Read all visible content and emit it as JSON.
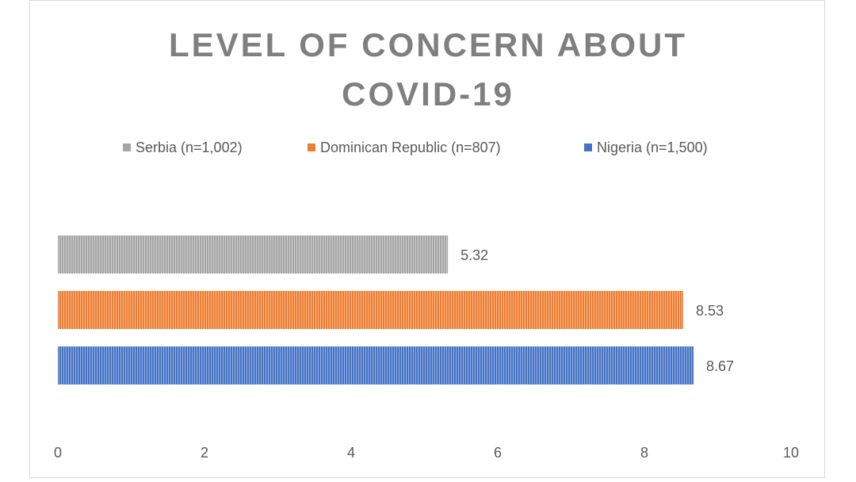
{
  "chart_data": {
    "type": "bar",
    "orientation": "horizontal",
    "title": "LEVEL OF CONCERN ABOUT COVID-19",
    "series": [
      {
        "name": "Serbia (n=1,002)",
        "color": "#a5a5a5",
        "values": [
          5.32
        ]
      },
      {
        "name": "Dominican Republic (n=807)",
        "color": "#ed7d31",
        "values": [
          8.53
        ]
      },
      {
        "name": "Nigeria (n=1,500)",
        "color": "#4472c4",
        "values": [
          8.67
        ]
      }
    ],
    "xlim": [
      0,
      10
    ],
    "xticks": [
      0,
      2,
      4,
      6,
      8,
      10
    ],
    "grid": false,
    "legend": "top"
  }
}
